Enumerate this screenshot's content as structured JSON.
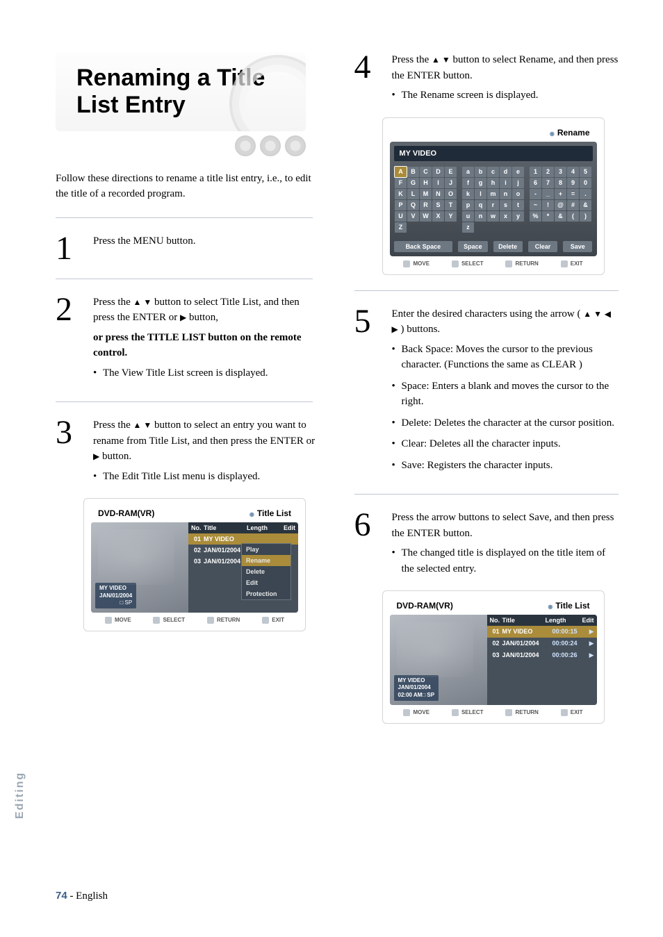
{
  "title": "Renaming a Title List Entry",
  "intro": "Follow these directions to rename a title list entry, i.e., to edit the title of a recorded program.",
  "step1": {
    "num": "1",
    "text": "Press the MENU button."
  },
  "step2": {
    "num": "2",
    "l1a": "Press the ",
    "l1b": " button to select Title List, and then press the ENTER or ",
    "l1c": " button,",
    "l2": "or press the TITLE LIST button on the remote control.",
    "bul": "The View Title List screen is displayed."
  },
  "step3": {
    "num": "3",
    "l1a": "Press the ",
    "l1b": " button to select an entry you want to rename from Title List, and then press the ENTER or ",
    "l1c": " button.",
    "bul": "The Edit Title List menu is displayed."
  },
  "step4": {
    "num": "4",
    "l1a": "Press the ",
    "l1b": " button to select Rename, and then press the ENTER button.",
    "bul": "The Rename screen is displayed."
  },
  "step5": {
    "num": "5",
    "l1a": "Enter the desired characters using the arrow ( ",
    "l1b": " ) buttons.",
    "b1": "Back Space: Moves the cursor to the previous character. (Functions the same as CLEAR )",
    "b2": "Space: Enters a blank and moves the cursor to the right.",
    "b3": "Delete: Deletes the character at the cursor position.",
    "b4": "Clear: Deletes all the character inputs.",
    "b5": "Save: Registers the character inputs."
  },
  "step6": {
    "num": "6",
    "l1": "Press the arrow buttons to select Save, and then press the ENTER button.",
    "bul": "The changed title is displayed on the title item of the selected entry."
  },
  "osd_titlelist": {
    "label": "Title List",
    "device": "DVD-RAM(VR)",
    "cols": {
      "no": "No.",
      "title": "Title",
      "length": "Length",
      "edit": "Edit"
    },
    "rows": [
      {
        "no": "01",
        "title": "MY VIDEO",
        "len": "00:00:15"
      },
      {
        "no": "02",
        "title": "JAN/01/2004",
        "len": "00:00:24"
      },
      {
        "no": "03",
        "title": "JAN/01/2004",
        "len": "00:00:26"
      }
    ],
    "thumb_t1": "MY VIDEO",
    "thumb_t2": "JAN/01/2004",
    "thumb_t3": "02:00 AM",
    "thumb_sp": "SP",
    "popup": [
      "Play",
      "Rename",
      "Delete",
      "Edit",
      "Protection"
    ]
  },
  "osd_rename": {
    "label": "Rename",
    "field": "MY VIDEO",
    "upper": [
      "A",
      "B",
      "C",
      "D",
      "E",
      "F",
      "G",
      "H",
      "I",
      "J",
      "K",
      "L",
      "M",
      "N",
      "O",
      "P",
      "Q",
      "R",
      "S",
      "T",
      "U",
      "V",
      "W",
      "X",
      "Y",
      "Z",
      "",
      "",
      "",
      ""
    ],
    "lower": [
      "a",
      "b",
      "c",
      "d",
      "e",
      "f",
      "g",
      "h",
      "i",
      "j",
      "k",
      "l",
      "m",
      "n",
      "o",
      "p",
      "q",
      "r",
      "s",
      "t",
      "u",
      "n",
      "w",
      "x",
      "y",
      "z",
      "",
      "",
      "",
      ""
    ],
    "syms": [
      "1",
      "2",
      "3",
      "4",
      "5",
      "6",
      "7",
      "8",
      "9",
      "0",
      "-",
      "_",
      "+",
      "=",
      ".",
      "~",
      "!",
      "@",
      "#",
      "&",
      "%",
      "*",
      "&",
      "(",
      ")",
      "",
      "",
      "",
      "",
      ""
    ],
    "btns": {
      "back": "Back Space",
      "space": "Space",
      "delete": "Delete",
      "clear": "Clear",
      "save": "Save"
    }
  },
  "footer_labels": {
    "move": "MOVE",
    "select": "SELECT",
    "return": "RETURN",
    "exit": "EXIT"
  },
  "arrows": {
    "ud": "▲ ▼",
    "lr": "◀ ▶",
    "r": "▶"
  },
  "side_tab": "Editing",
  "page_number": "74",
  "page_lang": " - English"
}
